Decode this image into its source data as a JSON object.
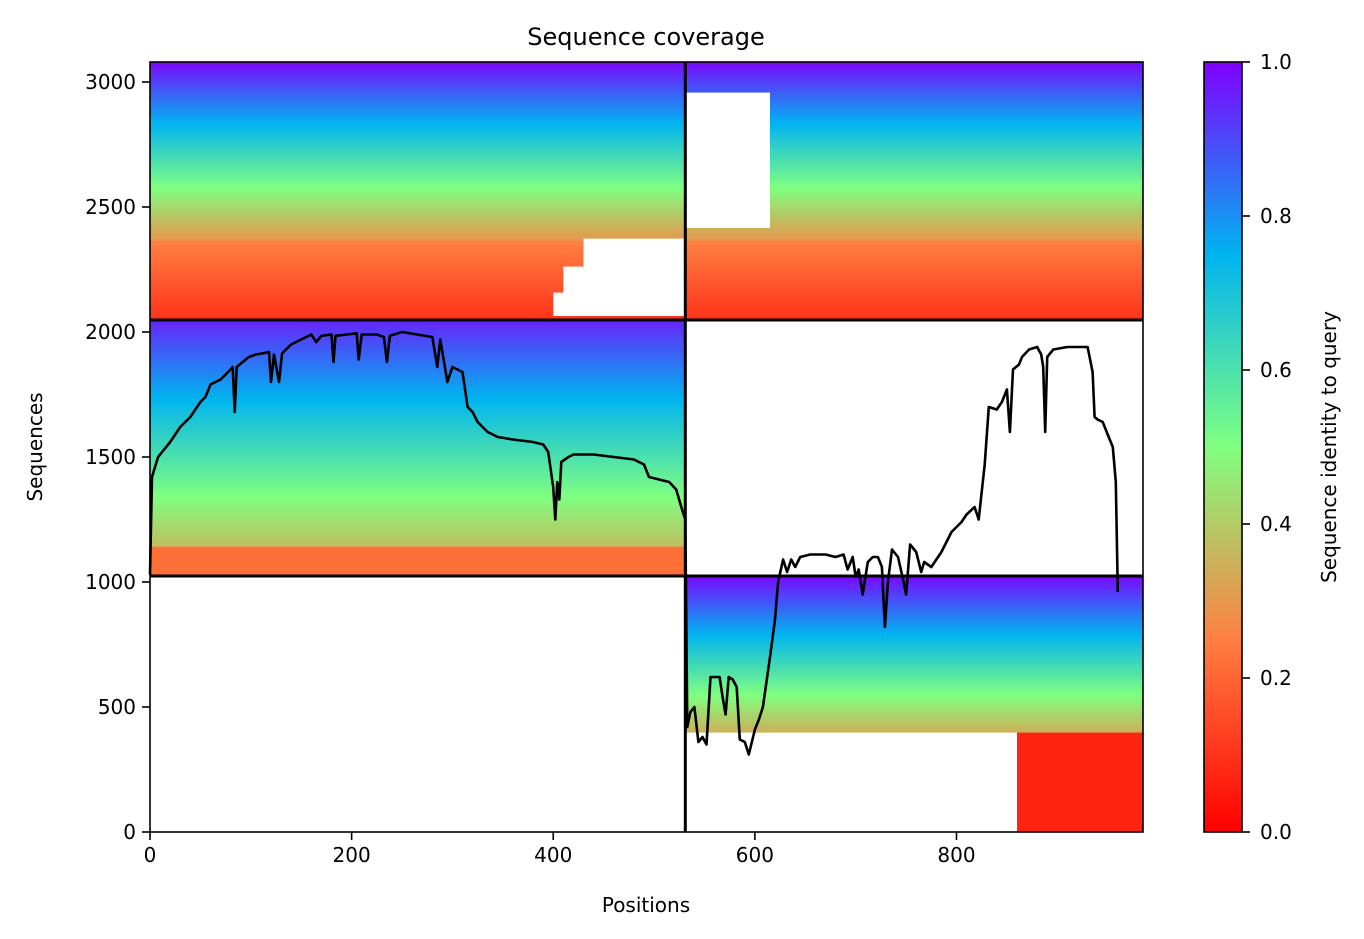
{
  "chart_data": {
    "type": "heatmap",
    "title": "Sequence coverage",
    "xlabel": "Positions",
    "ylabel": "Sequences",
    "xlim": [
      0,
      985
    ],
    "ylim": [
      0,
      3080
    ],
    "xticks": [
      0,
      200,
      400,
      600,
      800
    ],
    "yticks": [
      0,
      500,
      1000,
      1500,
      2000,
      2500,
      3000
    ],
    "colorbar": {
      "label": "Sequence identity to query",
      "range": [
        0.0,
        1.0
      ],
      "ticks": [
        "0.0",
        "0.2",
        "0.4",
        "0.6",
        "0.8",
        "1.0"
      ],
      "colormap": "rainbow_r",
      "stops": [
        "#ff0000",
        "#ff7f41",
        "#80ff80",
        "#00b4f0",
        "#8000ff"
      ]
    },
    "boundaries": {
      "vertical": [
        531
      ],
      "horizontal": [
        1024,
        2048
      ]
    },
    "blocks": [
      {
        "name": "block-top-left",
        "x": [
          0,
          531
        ],
        "y": [
          2048,
          3080
        ],
        "full_coverage_until_y": 2370,
        "low_identity_rows_x_end": [
          [
            2370,
            2260,
            430
          ],
          [
            2260,
            2160,
            410
          ],
          [
            2160,
            2060,
            400
          ]
        ]
      },
      {
        "name": "block-top-right",
        "x": [
          531,
          985
        ],
        "y": [
          2048,
          3080
        ],
        "gap_x": [
          531,
          615
        ],
        "gap_y": [
          2410,
          2960
        ]
      },
      {
        "name": "block-middle-left",
        "x": [
          0,
          531
        ],
        "y": [
          1024,
          2048
        ],
        "low_identity_from_y": 1140
      },
      {
        "name": "block-bottom-right",
        "x": [
          531,
          985
        ],
        "y": [
          0,
          1024
        ],
        "low_identity_region": {
          "x": [
            860,
            985
          ],
          "y": [
            0,
            400
          ]
        }
      }
    ],
    "coverage_line": {
      "name": "coverage",
      "color": "#000000",
      "points": [
        [
          0,
          1030
        ],
        [
          2,
          1420
        ],
        [
          5,
          1460
        ],
        [
          8,
          1500
        ],
        [
          12,
          1520
        ],
        [
          20,
          1560
        ],
        [
          30,
          1620
        ],
        [
          40,
          1660
        ],
        [
          50,
          1720
        ],
        [
          55,
          1740
        ],
        [
          60,
          1790
        ],
        [
          65,
          1800
        ],
        [
          70,
          1810
        ],
        [
          75,
          1830
        ],
        [
          80,
          1850
        ],
        [
          82,
          1860
        ],
        [
          84,
          1680
        ],
        [
          86,
          1860
        ],
        [
          92,
          1880
        ],
        [
          98,
          1900
        ],
        [
          105,
          1910
        ],
        [
          112,
          1915
        ],
        [
          118,
          1920
        ],
        [
          120,
          1800
        ],
        [
          123,
          1910
        ],
        [
          128,
          1800
        ],
        [
          131,
          1915
        ],
        [
          140,
          1950
        ],
        [
          150,
          1970
        ],
        [
          160,
          1990
        ],
        [
          165,
          1960
        ],
        [
          170,
          1985
        ],
        [
          180,
          1990
        ],
        [
          182,
          1880
        ],
        [
          184,
          1985
        ],
        [
          195,
          1990
        ],
        [
          205,
          1995
        ],
        [
          207,
          1890
        ],
        [
          210,
          1990
        ],
        [
          225,
          1990
        ],
        [
          232,
          1980
        ],
        [
          235,
          1880
        ],
        [
          238,
          1985
        ],
        [
          250,
          2000
        ],
        [
          265,
          1990
        ],
        [
          280,
          1980
        ],
        [
          285,
          1860
        ],
        [
          288,
          1970
        ],
        [
          295,
          1800
        ],
        [
          300,
          1860
        ],
        [
          310,
          1840
        ],
        [
          315,
          1700
        ],
        [
          320,
          1680
        ],
        [
          325,
          1640
        ],
        [
          335,
          1600
        ],
        [
          345,
          1580
        ],
        [
          360,
          1570
        ],
        [
          380,
          1560
        ],
        [
          390,
          1550
        ],
        [
          395,
          1520
        ],
        [
          400,
          1380
        ],
        [
          402,
          1250
        ],
        [
          404,
          1400
        ],
        [
          406,
          1330
        ],
        [
          408,
          1480
        ],
        [
          415,
          1500
        ],
        [
          420,
          1510
        ],
        [
          440,
          1510
        ],
        [
          460,
          1500
        ],
        [
          480,
          1490
        ],
        [
          490,
          1470
        ],
        [
          495,
          1420
        ],
        [
          505,
          1410
        ],
        [
          515,
          1400
        ],
        [
          522,
          1370
        ],
        [
          527,
          1300
        ],
        [
          531,
          1250
        ],
        [
          533,
          420
        ],
        [
          536,
          480
        ],
        [
          540,
          500
        ],
        [
          544,
          360
        ],
        [
          548,
          380
        ],
        [
          552,
          350
        ],
        [
          556,
          620
        ],
        [
          565,
          620
        ],
        [
          568,
          540
        ],
        [
          571,
          470
        ],
        [
          574,
          620
        ],
        [
          578,
          610
        ],
        [
          582,
          580
        ],
        [
          585,
          370
        ],
        [
          590,
          360
        ],
        [
          594,
          310
        ],
        [
          600,
          410
        ],
        [
          604,
          450
        ],
        [
          608,
          500
        ],
        [
          615,
          700
        ],
        [
          620,
          850
        ],
        [
          623,
          1000
        ],
        [
          628,
          1090
        ],
        [
          632,
          1040
        ],
        [
          636,
          1090
        ],
        [
          640,
          1060
        ],
        [
          645,
          1100
        ],
        [
          655,
          1110
        ],
        [
          670,
          1110
        ],
        [
          680,
          1100
        ],
        [
          688,
          1110
        ],
        [
          692,
          1050
        ],
        [
          697,
          1100
        ],
        [
          700,
          1020
        ],
        [
          703,
          1050
        ],
        [
          707,
          950
        ],
        [
          712,
          1080
        ],
        [
          717,
          1100
        ],
        [
          722,
          1100
        ],
        [
          726,
          1060
        ],
        [
          729,
          820
        ],
        [
          732,
          1000
        ],
        [
          736,
          1130
        ],
        [
          742,
          1100
        ],
        [
          747,
          1010
        ],
        [
          750,
          950
        ],
        [
          754,
          1150
        ],
        [
          760,
          1120
        ],
        [
          765,
          1040
        ],
        [
          768,
          1080
        ],
        [
          775,
          1060
        ],
        [
          785,
          1120
        ],
        [
          795,
          1200
        ],
        [
          805,
          1240
        ],
        [
          810,
          1270
        ],
        [
          818,
          1300
        ],
        [
          822,
          1250
        ],
        [
          828,
          1470
        ],
        [
          832,
          1700
        ],
        [
          840,
          1690
        ],
        [
          845,
          1720
        ],
        [
          850,
          1770
        ],
        [
          853,
          1600
        ],
        [
          856,
          1850
        ],
        [
          862,
          1870
        ],
        [
          865,
          1900
        ],
        [
          872,
          1930
        ],
        [
          880,
          1940
        ],
        [
          884,
          1910
        ],
        [
          886,
          1860
        ],
        [
          888,
          1600
        ],
        [
          890,
          1900
        ],
        [
          896,
          1930
        ],
        [
          910,
          1940
        ],
        [
          930,
          1940
        ],
        [
          935,
          1840
        ],
        [
          937,
          1660
        ],
        [
          940,
          1650
        ],
        [
          945,
          1640
        ],
        [
          950,
          1590
        ],
        [
          955,
          1540
        ],
        [
          958,
          1400
        ],
        [
          960,
          960
        ]
      ]
    }
  }
}
